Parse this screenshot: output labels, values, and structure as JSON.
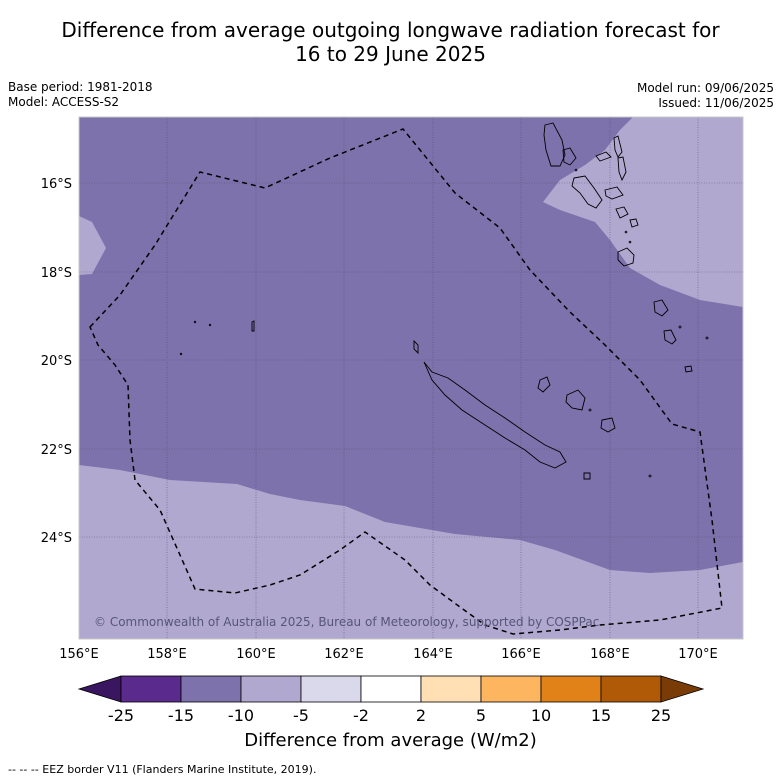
{
  "title_line1": "Difference from average outgoing longwave radiation forecast for",
  "title_line2": "16 to 29 June 2025",
  "base_period": "Base period: 1981-2018",
  "model": "Model: ACCESS-S2",
  "model_run": "Model run: 09/06/2025",
  "issued": "Issued: 11/06/2025",
  "copyright": "© Commonwealth of Australia 2025, Bureau of Meteorology, supported by COSPPac",
  "lon_ticks": [
    "156°E",
    "158°E",
    "160°E",
    "162°E",
    "164°E",
    "166°E",
    "168°E",
    "170°E"
  ],
  "lat_ticks": [
    "16°S",
    "18°S",
    "20°S",
    "22°S",
    "24°S"
  ],
  "colorbar": {
    "title": "Difference from average (W/m2)",
    "tick_labels": [
      "-25",
      "-15",
      "-10",
      "-5",
      "-2",
      "2",
      "5",
      "10",
      "15",
      "25"
    ],
    "colors": [
      "#3a1560",
      "#5a2a8c",
      "#7d72ab",
      "#b1a8d0",
      "#dad9ec",
      "#ffffff",
      "#ffdfb3",
      "#fdb560",
      "#e08218",
      "#b05a08",
      "#7a3c06"
    ]
  },
  "footnote": "-- -- -- EEZ border V11 (Flanders Marine Institute, 2019)."
}
